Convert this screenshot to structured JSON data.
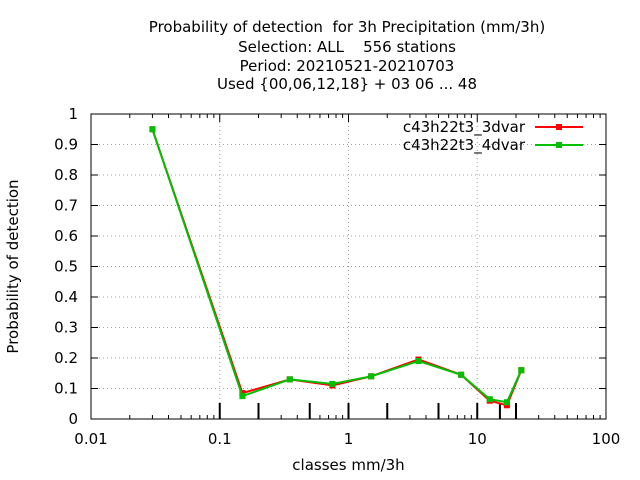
{
  "chart_data": {
    "type": "line",
    "title_lines": [
      "Probability of detection  for 3h Precipitation (mm/3h)",
      "Selection: ALL    556 stations",
      "Period: 20210521-20210703",
      "Used {00,06,12,18} + 03 06 ... 48"
    ],
    "xlabel": "classes mm/3h",
    "ylabel": "Probability of detection",
    "xscale": "log",
    "xlim": [
      0.01,
      100
    ],
    "ylim": [
      0,
      1
    ],
    "x_ticks": [
      0.01,
      0.1,
      1,
      10,
      100
    ],
    "x_tick_labels": [
      "0.01",
      "0.1",
      "1",
      "10",
      "100"
    ],
    "y_ticks": [
      0,
      0.1,
      0.2,
      0.3,
      0.4,
      0.5,
      0.6,
      0.7,
      0.8,
      0.9,
      1
    ],
    "y_tick_labels": [
      "0",
      "0.1",
      "0.2",
      "0.3",
      "0.4",
      "0.5",
      "0.6",
      "0.7",
      "0.8",
      "0.9",
      "1"
    ],
    "class_marks": [
      0.1,
      0.2,
      0.5,
      1,
      2,
      5,
      10,
      15,
      20
    ],
    "grid": true,
    "legend_position": "top-right",
    "series": [
      {
        "name": "c43h22t3_3dvar",
        "color": "#ff0000",
        "x": [
          0.03,
          0.15,
          0.35,
          0.75,
          1.5,
          3.5,
          7.5,
          12.5,
          17,
          22
        ],
        "y": [
          0.95,
          0.085,
          0.13,
          0.11,
          0.14,
          0.195,
          0.145,
          0.06,
          0.045,
          0.16
        ]
      },
      {
        "name": "c43h22t3_4dvar",
        "color": "#00c000",
        "x": [
          0.03,
          0.15,
          0.35,
          0.75,
          1.5,
          3.5,
          7.5,
          12.5,
          17,
          22
        ],
        "y": [
          0.95,
          0.075,
          0.13,
          0.115,
          0.14,
          0.19,
          0.145,
          0.065,
          0.055,
          0.16
        ]
      }
    ]
  }
}
